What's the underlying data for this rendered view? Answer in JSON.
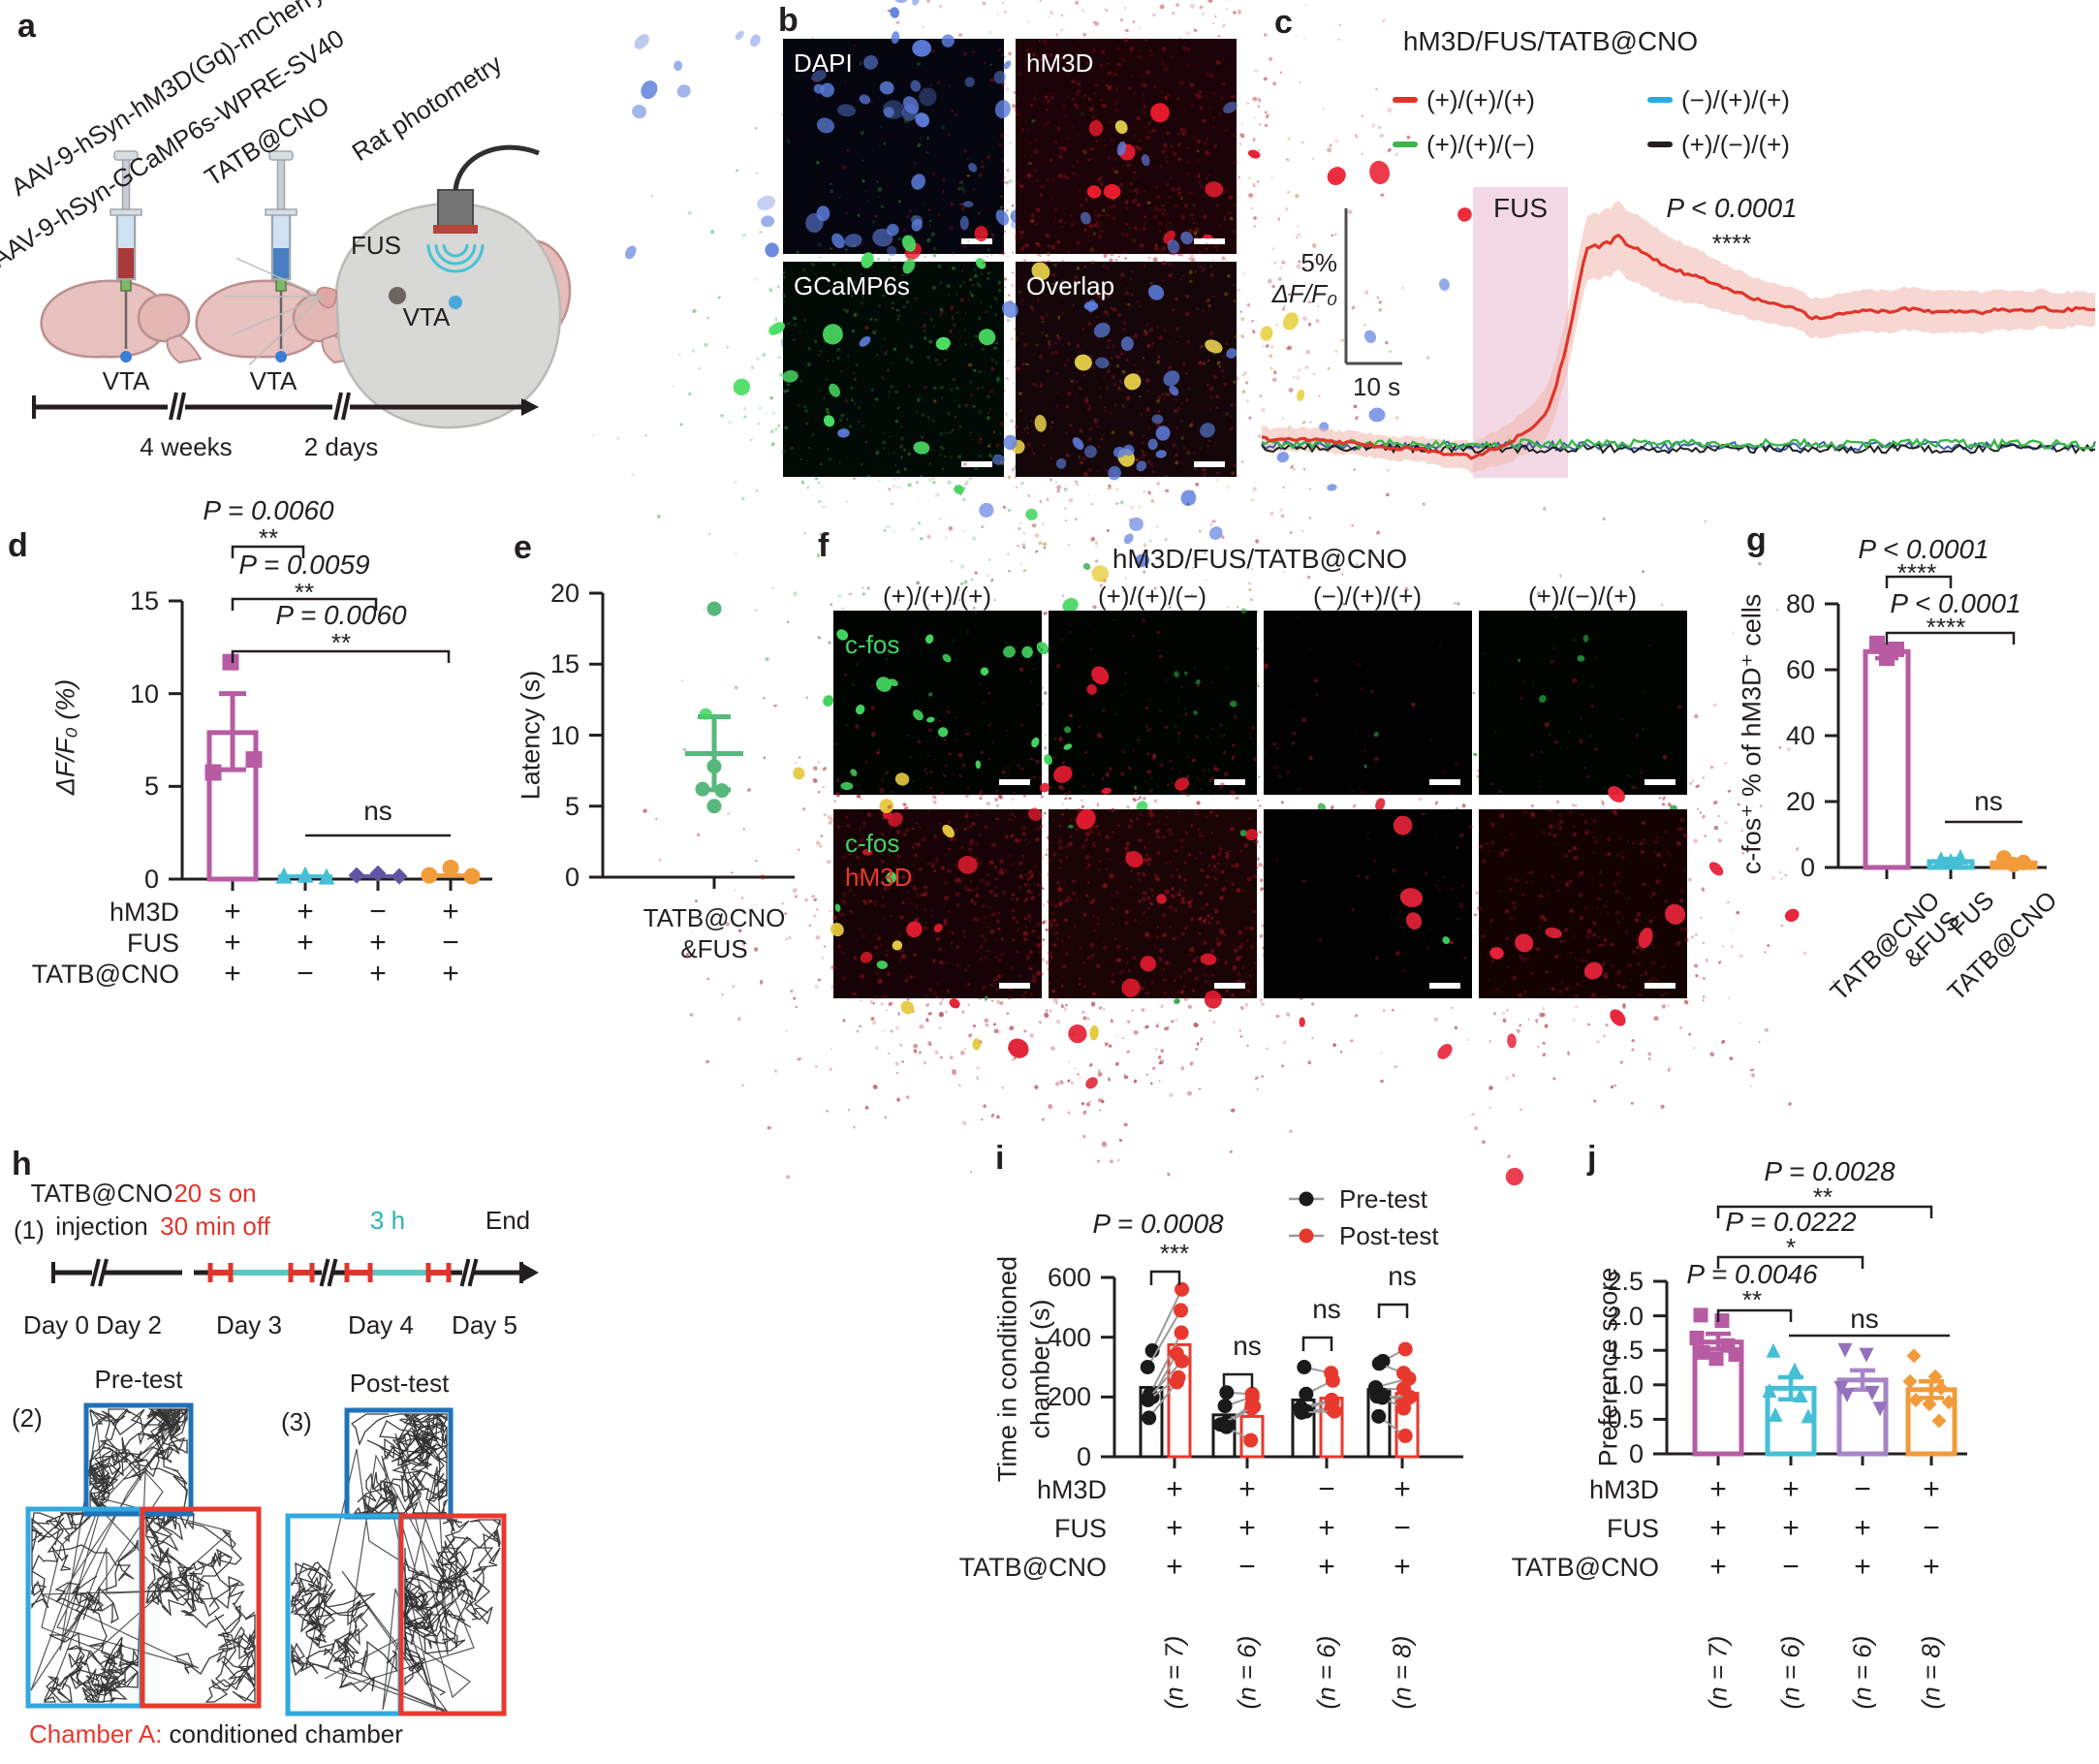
{
  "panel_a": {
    "label": "a",
    "virus_line1": "AAV-9-hSyn-hM3D(Gq)-mCherry",
    "virus_line2": "AAV-9-hSyn-GCaMP6s-WPRE-SV40",
    "tatb_label": "TATB@CNO",
    "photometry_label": "Rat photometry",
    "fus_label": "FUS",
    "vta1": "VTA",
    "vta2": "VTA",
    "vta3": "VTA",
    "interval1": "4 weeks",
    "interval2": "2 days"
  },
  "panel_b": {
    "label": "b",
    "images": [
      {
        "name": "DAPI"
      },
      {
        "name": "hM3D"
      },
      {
        "name": "GCaMP6s"
      },
      {
        "name": "Overlap"
      }
    ]
  },
  "panel_c": {
    "label": "c",
    "title": "hM3D/FUS/TATB@CNO",
    "legend": [
      {
        "label": "(+)/(+)/(+)",
        "color": "#e0352b"
      },
      {
        "label": "(+)/(+)/(−)",
        "color": "#3bb54a"
      },
      {
        "label": "(−)/(+)/(+)",
        "color": "#29abe2"
      },
      {
        "label": "(+)/(−)/(+)",
        "color": "#231f20"
      }
    ],
    "fus_label": "FUS",
    "p_text": "P < 0.0001",
    "stars": "****",
    "scale_v1": "5%",
    "scale_v2": "ΔF/F₀",
    "scale_h": "10 s",
    "trace": {
      "baseline_pct": 0,
      "dip_pct": -0.8,
      "peak_pct": 7.3,
      "end_pct": 4.6,
      "fus_duration_s": 10
    }
  },
  "panel_d": {
    "label": "d",
    "ylabel": "ΔF/F₀ (%)",
    "yticks": [
      "0",
      "5",
      "10",
      "15"
    ],
    "sig": [
      {
        "p": "P = 0.0060",
        "stars": "**"
      },
      {
        "p": "P = 0.0059",
        "stars": "**"
      },
      {
        "p": "P = 0.0060",
        "stars": "**"
      }
    ],
    "ns": "ns",
    "groups": [
      {
        "marker": "square",
        "color": "#b75ba3",
        "mean": 7.9,
        "err_hi": 10.0,
        "err_lo": 5.9,
        "points": [
          11.7,
          6.45,
          5.75
        ]
      },
      {
        "marker": "tri",
        "color": "#45bfd6",
        "mean": 0.15,
        "points": [
          0.2,
          0.25,
          0.15
        ]
      },
      {
        "marker": "diamond",
        "color": "#5f55a2",
        "mean": 0.15,
        "points": [
          0.2,
          0.3,
          0.15
        ]
      },
      {
        "marker": "circle",
        "color": "#f19b3b",
        "mean": 0.2,
        "points": [
          0.2,
          0.6,
          0.15
        ]
      }
    ],
    "matrix": {
      "rows": [
        "hM3D",
        "FUS",
        "TATB@CNO"
      ],
      "cols": [
        [
          "+",
          "+",
          "+"
        ],
        [
          "+",
          "+",
          "−"
        ],
        [
          "−",
          "+",
          "+"
        ],
        [
          "+",
          "−",
          "+"
        ]
      ]
    }
  },
  "panel_e": {
    "label": "e",
    "ylabel": "Latency (s)",
    "yticks": [
      "0",
      "5",
      "10",
      "15",
      "20"
    ],
    "xlabel1": "TATB@CNO",
    "xlabel2": "&FUS",
    "color": "#56b87c",
    "mean": 8.7,
    "err_hi": 11.3,
    "err_lo": 6.15,
    "points": [
      18.9,
      7.8,
      6.2,
      6.1,
      5.0
    ]
  },
  "panel_f": {
    "label": "f",
    "title": "hM3D/FUS/TATB@CNO",
    "col_labels": [
      "(+)/(+)/(+)",
      "(+)/(+)/(−)",
      "(−)/(+)/(+)",
      "(+)/(−)/(+)"
    ],
    "row1_tag": "c-fos",
    "row2_tag1": "c-fos",
    "row2_tag2": "hM3D"
  },
  "panel_g": {
    "label": "g",
    "ylabel": "c-fos⁺ % of hM3D⁺ cells",
    "yticks": [
      "0",
      "20",
      "40",
      "60",
      "80"
    ],
    "sig": [
      {
        "p": "P < 0.0001",
        "stars": "****"
      },
      {
        "p": "P < 0.0001",
        "stars": "****"
      }
    ],
    "ns": "ns",
    "bars": [
      {
        "label": "TATB@CNO\n&FUS",
        "marker": "square",
        "color": "#b75ba3",
        "mean": 65.5,
        "err_hi": 67.5,
        "err_lo": 63.5,
        "points": [
          68,
          66.2,
          63.5
        ]
      },
      {
        "label": "FUS",
        "marker": "tri",
        "color": "#45bfd6",
        "mean": 1.8,
        "err_hi": 2.6,
        "err_lo": 1.2,
        "points": [
          2.6,
          3.2,
          2.1
        ]
      },
      {
        "label": "TATB@CNO",
        "marker": "circle",
        "color": "#f19b3b",
        "mean": 1.4,
        "err_hi": 2.2,
        "err_lo": 0.8,
        "points": [
          2.9,
          1.5,
          0.9
        ]
      }
    ],
    "xlabels_line1": [
      "TATB@CNO",
      "FUS",
      "TATB@CNO"
    ],
    "xlabels_line2": [
      "&FUS",
      "",
      ""
    ]
  },
  "panel_h": {
    "label": "h",
    "step1": "(1)",
    "step2": "(2)",
    "step3": "(3)",
    "inj_line1": "TATB@CNO",
    "inj_line2": "injection",
    "fus_on": "20 s on",
    "fus_off": "30 min off",
    "duration": "3 h",
    "end": "End",
    "days": [
      "Day 0",
      "Day 2",
      "Day 3",
      "Day 4",
      "Day 5"
    ],
    "pretest": "Pre-test",
    "posttest": "Post-test",
    "chamber_a": "Chamber A:",
    "chamber_rest": " conditioned chamber"
  },
  "panel_i": {
    "label": "i",
    "legend": [
      {
        "label": "Pre-test",
        "color": "#1a1a1a"
      },
      {
        "label": "Post-test",
        "color": "#e8392e"
      }
    ],
    "p_text": "P = 0.0008",
    "stars": "***",
    "ns": "ns",
    "ylabel1": "Time in conditioned",
    "ylabel2": "chamber (s)",
    "yticks": [
      "0",
      "200",
      "400",
      "600"
    ],
    "groups": [
      {
        "pre_mean": 232,
        "post_mean": 375,
        "pairs": [
          [
            355,
            560
          ],
          [
            300,
            490
          ],
          [
            210,
            415
          ],
          [
            200,
            345
          ],
          [
            195,
            320
          ],
          [
            190,
            265
          ],
          [
            130,
            250
          ]
        ],
        "n": "(n = 7)"
      },
      {
        "pre_mean": 140,
        "post_mean": 135,
        "pairs": [
          [
            215,
            210
          ],
          [
            170,
            200
          ],
          [
            115,
            175
          ],
          [
            112,
            162
          ],
          [
            108,
            168
          ],
          [
            100,
            55
          ]
        ],
        "n": "(n = 6)"
      },
      {
        "pre_mean": 190,
        "post_mean": 196,
        "pairs": [
          [
            300,
            280
          ],
          [
            210,
            255
          ],
          [
            165,
            190
          ],
          [
            160,
            185
          ],
          [
            152,
            162
          ],
          [
            148,
            152
          ]
        ],
        "n": "(n = 6)"
      },
      {
        "pre_mean": 225,
        "post_mean": 212,
        "pairs": [
          [
            320,
            360
          ],
          [
            312,
            280
          ],
          [
            232,
            262
          ],
          [
            225,
            228
          ],
          [
            208,
            185
          ],
          [
            202,
            200
          ],
          [
            198,
            162
          ],
          [
            135,
            70
          ]
        ],
        "n": "(n = 8)"
      }
    ],
    "matrix": {
      "rows": [
        "hM3D",
        "FUS",
        "TATB@CNO"
      ],
      "cols": [
        [
          "+",
          "+",
          "+"
        ],
        [
          "+",
          "+",
          "−"
        ],
        [
          "−",
          "+",
          "+"
        ],
        [
          "+",
          "−",
          "+"
        ]
      ]
    }
  },
  "panel_j": {
    "label": "j",
    "ylabel": "Preference score",
    "yticks": [
      "0",
      "0.5",
      "1.0",
      "1.5",
      "2.0",
      "2.5"
    ],
    "sig": [
      {
        "p": "P = 0.0028",
        "stars": "**"
      },
      {
        "p": "P = 0.0222",
        "stars": "*"
      },
      {
        "p": "P = 0.0046",
        "stars": "**"
      }
    ],
    "ns": "ns",
    "bars": [
      {
        "marker": "square",
        "color": "#b75ba3",
        "mean": 1.62,
        "err_hi": 1.74,
        "err_lo": 1.52,
        "points": [
          2.01,
          1.93,
          1.68,
          1.57,
          1.47,
          1.44,
          1.38
        ],
        "n": "(n = 7)"
      },
      {
        "marker": "tri",
        "color": "#45bfd6",
        "mean": 0.95,
        "err_hi": 1.11,
        "err_lo": 0.79,
        "points": [
          1.5,
          1.22,
          0.92,
          0.85,
          0.57,
          0.55
        ],
        "n": "(n = 6)"
      },
      {
        "marker": "tridown",
        "color": "#9271bd",
        "barcolor": "#a685c6",
        "mean": 1.07,
        "err_hi": 1.21,
        "err_lo": 0.93,
        "points": [
          1.5,
          1.43,
          0.95,
          0.88,
          0.85,
          0.65
        ],
        "n": "(n = 6)"
      },
      {
        "marker": "diamond",
        "color": "#f19b3b",
        "mean": 0.93,
        "err_hi": 1.05,
        "err_lo": 0.81,
        "points": [
          1.42,
          1.12,
          1.05,
          0.95,
          0.78,
          0.75,
          0.72,
          0.48
        ],
        "n": "(n = 8)"
      }
    ],
    "matrix": {
      "rows": [
        "hM3D",
        "FUS",
        "TATB@CNO"
      ],
      "cols": [
        [
          "+",
          "+",
          "+"
        ],
        [
          "+",
          "+",
          "−"
        ],
        [
          "−",
          "+",
          "+"
        ],
        [
          "+",
          "−",
          "+"
        ]
      ]
    }
  },
  "chart_data": [
    {
      "type": "line",
      "title": "hM3D/FUS/TATB@CNO photometry",
      "series": [
        {
          "name": "(+)/(+)/(+)",
          "summary": {
            "baseline_pct": 0,
            "pre_fus_dip_pct": -0.8,
            "peak_pct": 7.3,
            "end_pct": 4.6
          }
        },
        {
          "name": "(+)/(+)/(−)",
          "summary": {
            "flat_pct": 0
          }
        },
        {
          "name": "(−)/(+)/(+)",
          "summary": {
            "flat_pct": 0
          }
        },
        {
          "name": "(+)/(−)/(+)",
          "summary": {
            "flat_pct": 0
          }
        }
      ],
      "annotations": [
        "FUS",
        "P < 0.0001",
        "****"
      ],
      "scalebars": {
        "y": "5% ΔF/F₀",
        "x": "10 s"
      }
    },
    {
      "type": "bar",
      "title": "d",
      "ylabel": "ΔF/F₀ (%)",
      "ylim": [
        0,
        15
      ],
      "categories": [
        "+/+/+",
        "+/+/−",
        "−/+/+",
        "+/−/+"
      ],
      "values": [
        7.9,
        0.15,
        0.15,
        0.2
      ],
      "points": [
        [
          11.7,
          6.45,
          5.75
        ],
        [
          0.2,
          0.25,
          0.15
        ],
        [
          0.2,
          0.3,
          0.15
        ],
        [
          0.2,
          0.6,
          0.15
        ]
      ],
      "sig": [
        "P = 0.0060",
        "P = 0.0059",
        "P = 0.0060",
        "ns"
      ]
    },
    {
      "type": "scatter",
      "title": "e",
      "ylabel": "Latency (s)",
      "ylim": [
        0,
        20
      ],
      "categories": [
        "TATB@CNO &FUS"
      ],
      "values": [
        18.9,
        7.8,
        6.2,
        6.1,
        5.0
      ],
      "mean": 8.7,
      "sem": [
        6.15,
        11.3
      ]
    },
    {
      "type": "bar",
      "title": "g",
      "ylabel": "c-fos⁺ % of hM3D⁺ cells",
      "ylim": [
        0,
        80
      ],
      "categories": [
        "TATB@CNO &FUS",
        "FUS",
        "TATB@CNO"
      ],
      "values": [
        65.5,
        1.8,
        1.4
      ],
      "points": [
        [
          68,
          66.2,
          63.5
        ],
        [
          2.6,
          3.2,
          2.1
        ],
        [
          2.9,
          1.5,
          0.9
        ]
      ],
      "sig": [
        "P < 0.0001",
        "P < 0.0001",
        "ns"
      ]
    },
    {
      "type": "bar",
      "title": "i",
      "ylabel": "Time in conditioned chamber (s)",
      "ylim": [
        0,
        600
      ],
      "categories": [
        "+/+/+ (n=7)",
        "+/+/− (n=6)",
        "−/+/+ (n=6)",
        "+/−/+ (n=8)"
      ],
      "series": [
        {
          "name": "Pre-test",
          "values": [
            232,
            140,
            190,
            225
          ]
        },
        {
          "name": "Post-test",
          "values": [
            375,
            135,
            196,
            212
          ]
        }
      ],
      "sig": [
        "P = 0.0008 ***",
        "ns",
        "ns",
        "ns"
      ]
    },
    {
      "type": "bar",
      "title": "j",
      "ylabel": "Preference score",
      "ylim": [
        0,
        2.5
      ],
      "categories": [
        "+/+/+ (n=7)",
        "+/+/− (n=6)",
        "−/+/+ (n=6)",
        "+/−/+ (n=8)"
      ],
      "values": [
        1.62,
        0.95,
        1.07,
        0.93
      ],
      "sig": [
        "P = 0.0046",
        "P = 0.0222",
        "P = 0.0028",
        "ns"
      ]
    }
  ]
}
